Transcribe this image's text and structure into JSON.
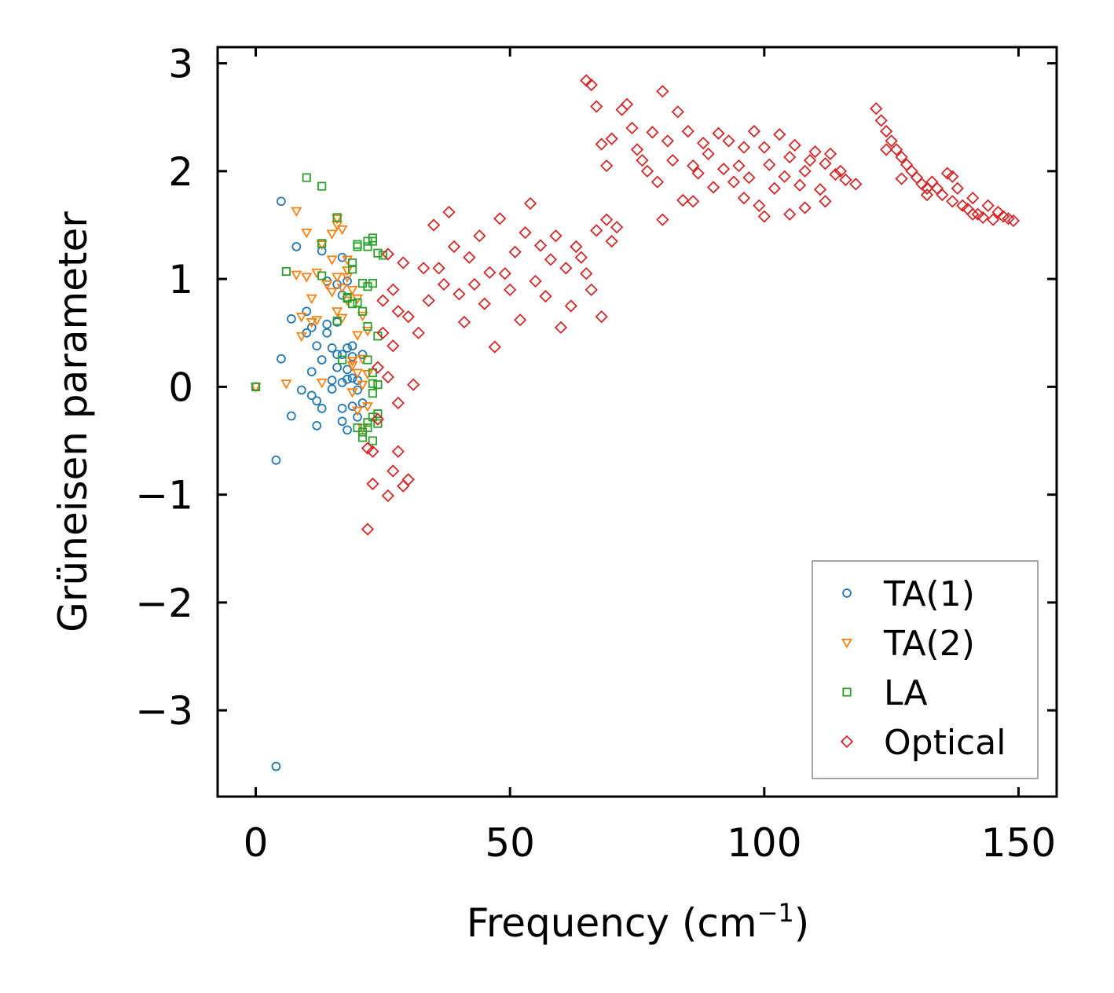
{
  "chart_data": {
    "type": "scatter",
    "title": "",
    "xlabel": "Frequency (cm",
    "xlabel_sup": "−1",
    "xlabel_close": ")",
    "ylabel": "Grüneisen parameter",
    "xlim": [
      -7.5,
      157.5
    ],
    "ylim": [
      -3.8,
      3.15
    ],
    "xticks": [
      0,
      50,
      100,
      150
    ],
    "yticks": [
      -3,
      -2,
      -1,
      0,
      1,
      2,
      3
    ],
    "xtick_labels": [
      "0",
      "50",
      "100",
      "150"
    ],
    "ytick_labels": [
      "−3",
      "−2",
      "−1",
      "0",
      "1",
      "2",
      "3"
    ],
    "legend_position": "lower-right",
    "series": [
      {
        "name": "TA(1)",
        "marker": "circle",
        "color": "#1f77b4",
        "points": [
          [
            0,
            0
          ],
          [
            4,
            -3.52
          ],
          [
            4,
            -0.68
          ],
          [
            5,
            1.72
          ],
          [
            5,
            0.26
          ],
          [
            7,
            0.63
          ],
          [
            7,
            -0.27
          ],
          [
            8,
            1.3
          ],
          [
            9,
            -0.03
          ],
          [
            10,
            0.7
          ],
          [
            10,
            0.5
          ],
          [
            11,
            -0.08
          ],
          [
            11,
            0.55
          ],
          [
            11,
            0.14
          ],
          [
            12,
            -0.13
          ],
          [
            12,
            0.38
          ],
          [
            12,
            -0.36
          ],
          [
            13,
            0.25
          ],
          [
            13,
            -0.2
          ],
          [
            13,
            1.26
          ],
          [
            14,
            0.58
          ],
          [
            14,
            0.5
          ],
          [
            14,
            0.98
          ],
          [
            15,
            0.06
          ],
          [
            15,
            0.36
          ],
          [
            15,
            -0.02
          ],
          [
            16,
            0.3
          ],
          [
            16,
            0.18
          ],
          [
            16,
            0.95
          ],
          [
            17,
            1.2
          ],
          [
            17,
            -0.2
          ],
          [
            17,
            0.3
          ],
          [
            17,
            -0.32
          ],
          [
            17,
            0.04
          ],
          [
            18,
            0.98
          ],
          [
            18,
            0.16
          ],
          [
            18,
            -0.4
          ],
          [
            18,
            0.36
          ],
          [
            18,
            0.07
          ],
          [
            19,
            -0.18
          ],
          [
            19,
            0.38
          ],
          [
            19,
            0.28
          ],
          [
            19,
            0.08
          ],
          [
            20,
            -0.03
          ],
          [
            20,
            0.06
          ],
          [
            20,
            -0.28
          ],
          [
            21,
            0.3
          ],
          [
            21,
            -0.15
          ],
          [
            16,
            0.6
          ],
          [
            17,
            0.85
          ]
        ]
      },
      {
        "name": "TA(2)",
        "marker": "triangle-down",
        "color": "#ff7f0e",
        "points": [
          [
            0,
            0
          ],
          [
            6,
            0.03
          ],
          [
            8,
            1.63
          ],
          [
            8,
            1.04
          ],
          [
            9,
            0.47
          ],
          [
            9,
            0.65
          ],
          [
            10,
            1.43
          ],
          [
            10,
            1.02
          ],
          [
            11,
            0.6
          ],
          [
            11,
            0.82
          ],
          [
            12,
            1.06
          ],
          [
            13,
            0.04
          ],
          [
            13,
            1.32
          ],
          [
            14,
            0.95
          ],
          [
            15,
            1.42
          ],
          [
            15,
            1.18
          ],
          [
            15,
            0.88
          ],
          [
            16,
            1.02
          ],
          [
            16,
            1.5
          ],
          [
            16,
            0.7
          ],
          [
            17,
            1.46
          ],
          [
            17,
            0.92
          ],
          [
            17,
            0.64
          ],
          [
            18,
            1.18
          ],
          [
            18,
            0.8
          ],
          [
            18,
            1.02
          ],
          [
            19,
            0.9
          ],
          [
            19,
            0.24
          ],
          [
            19,
            -0.05
          ],
          [
            20,
            0.82
          ],
          [
            20,
            0.48
          ],
          [
            20,
            -0.22
          ],
          [
            21,
            0.26
          ],
          [
            21,
            0.02
          ],
          [
            21,
            -0.38
          ],
          [
            22,
            0.52
          ],
          [
            22,
            0.12
          ],
          [
            22,
            -0.18
          ],
          [
            16,
            1.56
          ],
          [
            18,
            1.08
          ],
          [
            19,
            0.2
          ],
          [
            21,
            0.66
          ],
          [
            12,
            0.62
          ],
          [
            20,
            0.13
          ]
        ]
      },
      {
        "name": "LA",
        "marker": "square",
        "color": "#2ca02c",
        "points": [
          [
            0,
            0
          ],
          [
            6,
            1.07
          ],
          [
            10,
            1.94
          ],
          [
            13,
            1.86
          ],
          [
            13,
            1.33
          ],
          [
            13,
            1.03
          ],
          [
            16,
            1.57
          ],
          [
            16,
            0.61
          ],
          [
            17,
            0.25
          ],
          [
            18,
            0.82
          ],
          [
            18,
            0.83
          ],
          [
            19,
            1.09
          ],
          [
            19,
            0.77
          ],
          [
            19,
            1.15
          ],
          [
            20,
            1.3
          ],
          [
            20,
            0.78
          ],
          [
            20,
            -0.38
          ],
          [
            21,
            -0.42
          ],
          [
            21,
            -0.47
          ],
          [
            21,
            0.7
          ],
          [
            22,
            1.3
          ],
          [
            22,
            1.35
          ],
          [
            22,
            0.56
          ],
          [
            22,
            0.25
          ],
          [
            22,
            -0.38
          ],
          [
            22,
            -0.33
          ],
          [
            23,
            1.38
          ],
          [
            23,
            1.35
          ],
          [
            23,
            0.96
          ],
          [
            23,
            0.13
          ],
          [
            23,
            -0.06
          ],
          [
            23,
            -0.5
          ],
          [
            23,
            0.03
          ],
          [
            24,
            1.24
          ],
          [
            24,
            0.47
          ],
          [
            24,
            0.02
          ],
          [
            24,
            -0.34
          ],
          [
            25,
            1.22
          ],
          [
            21,
            0.96
          ],
          [
            20,
            1.32
          ],
          [
            22,
            0.93
          ],
          [
            23,
            -0.28
          ],
          [
            24,
            -0.25
          ]
        ]
      },
      {
        "name": "Optical",
        "marker": "diamond",
        "color": "#d62728",
        "points": [
          [
            22,
            -1.32
          ],
          [
            23,
            -0.9
          ],
          [
            26,
            -1.01
          ],
          [
            27,
            -0.78
          ],
          [
            29,
            -0.92
          ],
          [
            28,
            -0.6
          ],
          [
            30,
            -0.86
          ],
          [
            23,
            -0.6
          ],
          [
            22,
            -0.57
          ],
          [
            24,
            -0.3
          ],
          [
            25,
            0.8
          ],
          [
            26,
            1.23
          ],
          [
            27,
            0.38
          ],
          [
            28,
            -0.15
          ],
          [
            30,
            0.65
          ],
          [
            29,
            1.15
          ],
          [
            24,
            0.18
          ],
          [
            25,
            0.5
          ],
          [
            26,
            0.09
          ],
          [
            27,
            0.9
          ],
          [
            28,
            0.7
          ],
          [
            31,
            0.02
          ],
          [
            32,
            0.5
          ],
          [
            33,
            1.1
          ],
          [
            34,
            0.8
          ],
          [
            35,
            1.5
          ],
          [
            36,
            1.1
          ],
          [
            37,
            0.95
          ],
          [
            38,
            1.62
          ],
          [
            39,
            1.3
          ],
          [
            40,
            0.86
          ],
          [
            41,
            0.6
          ],
          [
            42,
            1.2
          ],
          [
            43,
            0.95
          ],
          [
            44,
            1.4
          ],
          [
            45,
            0.77
          ],
          [
            46,
            1.06
          ],
          [
            47,
            0.37
          ],
          [
            48,
            1.56
          ],
          [
            49,
            1.05
          ],
          [
            50,
            0.9
          ],
          [
            51,
            1.25
          ],
          [
            52,
            0.62
          ],
          [
            53,
            1.43
          ],
          [
            54,
            1.7
          ],
          [
            55,
            0.98
          ],
          [
            56,
            1.31
          ],
          [
            57,
            0.84
          ],
          [
            58,
            1.18
          ],
          [
            59,
            1.4
          ],
          [
            60,
            0.55
          ],
          [
            61,
            1.1
          ],
          [
            62,
            0.75
          ],
          [
            63,
            1.3
          ],
          [
            64,
            1.2
          ],
          [
            65,
            1.05
          ],
          [
            66,
            0.9
          ],
          [
            67,
            1.45
          ],
          [
            68,
            0.65
          ],
          [
            69,
            1.55
          ],
          [
            70,
            1.35
          ],
          [
            71,
            1.48
          ],
          [
            65,
            2.84
          ],
          [
            66,
            2.8
          ],
          [
            67,
            2.6
          ],
          [
            68,
            2.25
          ],
          [
            69,
            2.05
          ],
          [
            70,
            2.3
          ],
          [
            72,
            2.57
          ],
          [
            73,
            2.62
          ],
          [
            74,
            2.4
          ],
          [
            75,
            2.2
          ],
          [
            76,
            2.1
          ],
          [
            77,
            2.0
          ],
          [
            78,
            2.36
          ],
          [
            79,
            1.9
          ],
          [
            80,
            2.74
          ],
          [
            81,
            2.28
          ],
          [
            82,
            2.1
          ],
          [
            83,
            2.55
          ],
          [
            84,
            1.73
          ],
          [
            85,
            2.37
          ],
          [
            86,
            2.05
          ],
          [
            87,
            1.98
          ],
          [
            88,
            2.26
          ],
          [
            89,
            2.16
          ],
          [
            90,
            1.85
          ],
          [
            91,
            2.35
          ],
          [
            92,
            2.02
          ],
          [
            93,
            2.28
          ],
          [
            94,
            1.9
          ],
          [
            95,
            2.05
          ],
          [
            96,
            2.22
          ],
          [
            97,
            1.94
          ],
          [
            98,
            2.37
          ],
          [
            99,
            1.68
          ],
          [
            100,
            2.22
          ],
          [
            101,
            2.06
          ],
          [
            102,
            1.84
          ],
          [
            103,
            2.34
          ],
          [
            104,
            1.95
          ],
          [
            105,
            2.13
          ],
          [
            106,
            2.24
          ],
          [
            107,
            1.87
          ],
          [
            108,
            2.0
          ],
          [
            109,
            2.1
          ],
          [
            110,
            2.18
          ],
          [
            111,
            1.83
          ],
          [
            112,
            2.07
          ],
          [
            113,
            2.16
          ],
          [
            114,
            1.97
          ],
          [
            115,
            2.0
          ],
          [
            116,
            1.92
          ],
          [
            118,
            1.88
          ],
          [
            100,
            1.58
          ],
          [
            108,
            1.66
          ],
          [
            112,
            1.72
          ],
          [
            105,
            1.6
          ],
          [
            96,
            1.75
          ],
          [
            86,
            1.72
          ],
          [
            80,
            1.55
          ],
          [
            122,
            2.58
          ],
          [
            123,
            2.47
          ],
          [
            124,
            2.37
          ],
          [
            125,
            2.28
          ],
          [
            126,
            2.2
          ],
          [
            127,
            2.13
          ],
          [
            128,
            2.06
          ],
          [
            129,
            2.0
          ],
          [
            130,
            1.94
          ],
          [
            131,
            1.88
          ],
          [
            132,
            1.84
          ],
          [
            133,
            1.9
          ],
          [
            134,
            1.84
          ],
          [
            135,
            1.78
          ],
          [
            136,
            1.98
          ],
          [
            137,
            1.72
          ],
          [
            138,
            1.84
          ],
          [
            139,
            1.68
          ],
          [
            140,
            1.65
          ],
          [
            141,
            1.75
          ],
          [
            142,
            1.6
          ],
          [
            143,
            1.57
          ],
          [
            144,
            1.68
          ],
          [
            145,
            1.55
          ],
          [
            146,
            1.62
          ],
          [
            147,
            1.58
          ],
          [
            148,
            1.56
          ],
          [
            149,
            1.54
          ],
          [
            124,
            2.2
          ],
          [
            127,
            1.93
          ],
          [
            132,
            1.78
          ],
          [
            137,
            1.95
          ],
          [
            141,
            1.6
          ]
        ]
      }
    ]
  }
}
